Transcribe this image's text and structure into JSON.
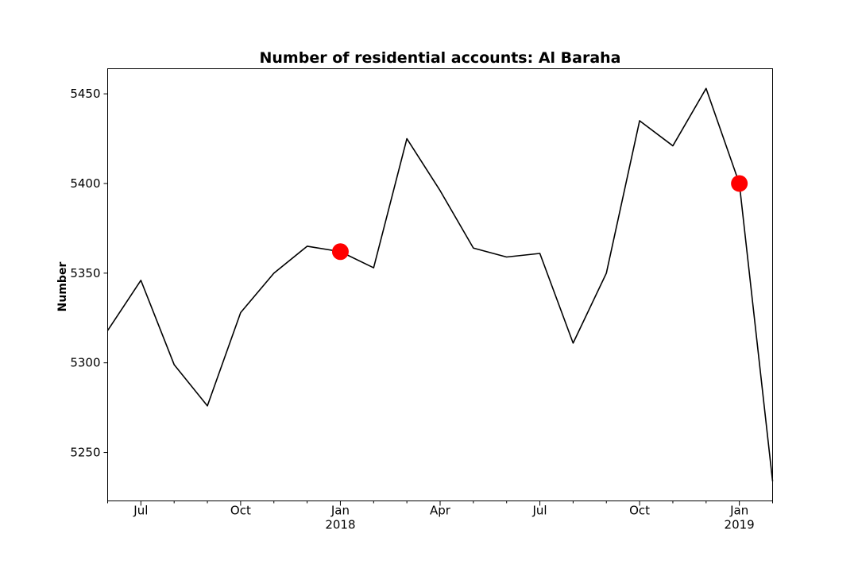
{
  "chart_data": {
    "type": "line",
    "title": "Number of residential accounts: Al Baraha",
    "xlabel": "",
    "ylabel": "Number",
    "x": [
      "2017-06",
      "2017-07",
      "2017-08",
      "2017-09",
      "2017-10",
      "2017-11",
      "2017-12",
      "2018-01",
      "2018-02",
      "2018-03",
      "2018-04",
      "2018-05",
      "2018-06",
      "2018-07",
      "2018-08",
      "2018-09",
      "2018-10",
      "2018-11",
      "2018-12",
      "2019-01",
      "2019-02"
    ],
    "series": [
      {
        "values": [
          5318,
          5346,
          5299,
          5276,
          5328,
          5350,
          5365,
          5362,
          5353,
          5425,
          5396,
          5364,
          5359,
          5361,
          5311,
          5350,
          5435,
          5421,
          5453,
          5400,
          5234
        ]
      }
    ],
    "highlight_points": [
      {
        "x": "2018-01",
        "y": 5362
      },
      {
        "x": "2019-01",
        "y": 5400
      }
    ],
    "highlight_color": "#ff0000",
    "line_color": "#000000",
    "xlim": [
      "2017-06",
      "2019-02"
    ],
    "ylim": [
      5223,
      5464
    ],
    "yticks": [
      5250,
      5300,
      5350,
      5400,
      5450
    ],
    "xticks_major": [
      {
        "x": "2017-07",
        "label": "Jul",
        "sublabel": ""
      },
      {
        "x": "2017-10",
        "label": "Oct",
        "sublabel": ""
      },
      {
        "x": "2018-01",
        "label": "Jan",
        "sublabel": "2018"
      },
      {
        "x": "2018-04",
        "label": "Apr",
        "sublabel": ""
      },
      {
        "x": "2018-07",
        "label": "Jul",
        "sublabel": ""
      },
      {
        "x": "2018-10",
        "label": "Oct",
        "sublabel": ""
      },
      {
        "x": "2019-01",
        "label": "Jan",
        "sublabel": "2019"
      }
    ],
    "grid": false,
    "legend": "none"
  }
}
